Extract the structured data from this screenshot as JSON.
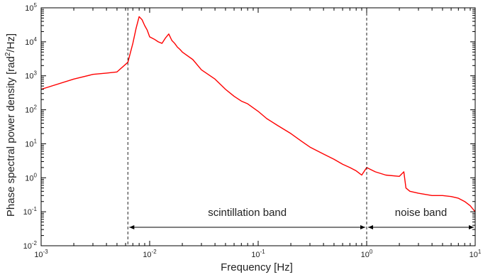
{
  "chart_data": {
    "type": "line",
    "title": "",
    "xlabel": "Frequency [Hz]",
    "ylabel_parts": {
      "main": "Phase spectral power density [rad",
      "sup": "2",
      "tail": "/Hz]"
    },
    "x_scale": "log",
    "y_scale": "log",
    "xlim": [
      0.001,
      10
    ],
    "ylim": [
      0.01,
      100000
    ],
    "x_ticks": [
      {
        "value": 0.001,
        "base": "10",
        "exp": "-3"
      },
      {
        "value": 0.01,
        "base": "10",
        "exp": "-2"
      },
      {
        "value": 0.1,
        "base": "10",
        "exp": "-1"
      },
      {
        "value": 1,
        "base": "10",
        "exp": "0"
      },
      {
        "value": 10,
        "base": "10",
        "exp": "1"
      }
    ],
    "y_ticks": [
      {
        "value": 0.01,
        "base": "10",
        "exp": "-2"
      },
      {
        "value": 0.1,
        "base": "10",
        "exp": "-1"
      },
      {
        "value": 1,
        "base": "10",
        "exp": "0"
      },
      {
        "value": 10,
        "base": "10",
        "exp": "1"
      },
      {
        "value": 100,
        "base": "10",
        "exp": "2"
      },
      {
        "value": 1000,
        "base": "10",
        "exp": "3"
      },
      {
        "value": 10000,
        "base": "10",
        "exp": "4"
      },
      {
        "value": 100000,
        "base": "10",
        "exp": "5"
      }
    ],
    "grid": false,
    "series": [
      {
        "color": "#ff0000",
        "x": [
          0.001,
          0.002,
          0.003,
          0.004,
          0.005,
          0.0063,
          0.007,
          0.0075,
          0.008,
          0.0085,
          0.009,
          0.0095,
          0.01,
          0.011,
          0.012,
          0.013,
          0.014,
          0.015,
          0.016,
          0.017,
          0.018,
          0.019,
          0.02,
          0.025,
          0.03,
          0.04,
          0.05,
          0.06,
          0.07,
          0.08,
          0.1,
          0.12,
          0.15,
          0.2,
          0.25,
          0.3,
          0.4,
          0.5,
          0.6,
          0.7,
          0.8,
          0.9,
          1.0,
          1.2,
          1.5,
          2.0,
          2.2,
          2.3,
          2.5,
          3,
          4,
          5,
          6,
          7,
          8,
          9,
          10
        ],
        "y": [
          400,
          800,
          1100,
          1200,
          1300,
          2500,
          9000,
          25000,
          55000,
          45000,
          30000,
          22000,
          14000,
          12000,
          10000,
          9000,
          13000,
          17000,
          11000,
          9000,
          7000,
          6000,
          5000,
          3000,
          1500,
          800,
          400,
          250,
          180,
          150,
          90,
          55,
          35,
          20,
          12,
          8,
          5,
          3.5,
          2.5,
          2,
          1.6,
          1.2,
          2,
          1.5,
          1.2,
          1.1,
          1.5,
          0.5,
          0.4,
          0.35,
          0.3,
          0.3,
          0.28,
          0.25,
          0.2,
          0.15,
          0.1
        ]
      }
    ],
    "vlines": [
      0.0063,
      1.0
    ],
    "annotations": [
      {
        "text": "scintillation band",
        "x_from": 0.0063,
        "x_to": 1.0,
        "y": 0.035
      },
      {
        "text": "noise band",
        "x_from": 1.0,
        "x_to": 10,
        "y": 0.035
      }
    ]
  }
}
